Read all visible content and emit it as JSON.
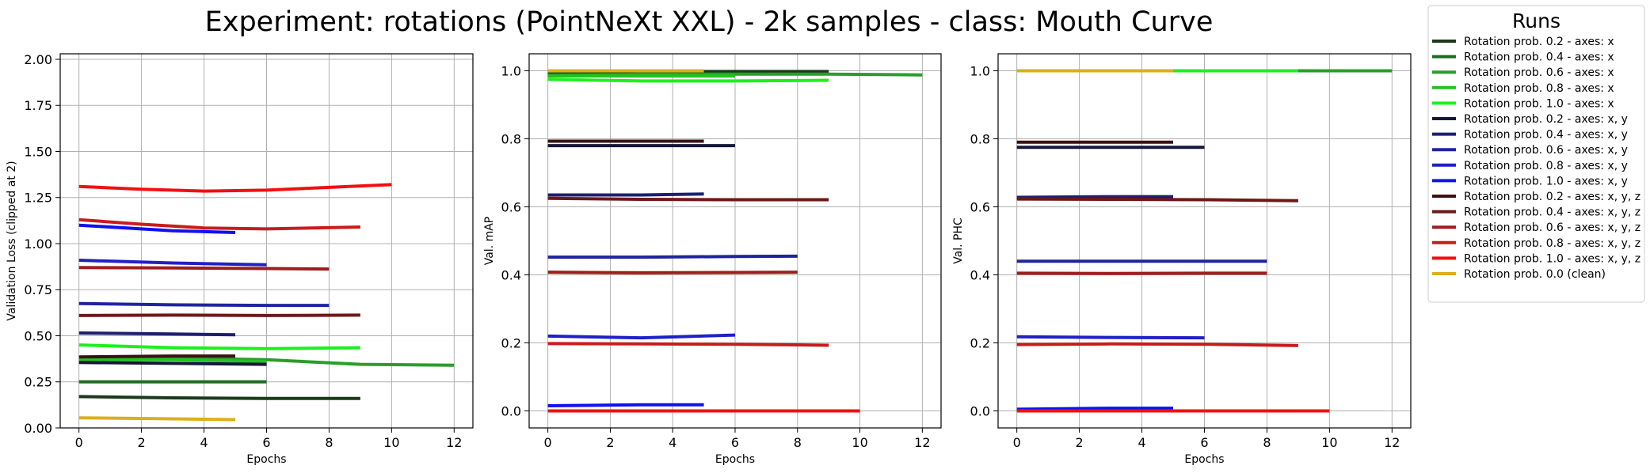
{
  "figure": {
    "title": "Experiment: rotations (PointNeXt XXL) - 2k samples - class: Mouth Curve"
  },
  "legend": {
    "title": "Runs",
    "placement": "outside-right"
  },
  "chart_data": [
    {
      "type": "line",
      "xlabel": "Epochs",
      "ylabel": "Validation Loss (clipped at 2)",
      "xlim": [
        -0.6,
        12.6
      ],
      "ylim": [
        0,
        2.03
      ],
      "xticks": [
        "0",
        "2",
        "4",
        "6",
        "8",
        "10",
        "12"
      ],
      "yticks": [
        "0.00",
        "0.25",
        "0.50",
        "0.75",
        "1.00",
        "1.25",
        "1.50",
        "1.75",
        "2.00"
      ],
      "grid": true,
      "series": [
        {
          "name": "Rotation prob. 0.2 - axes: x",
          "color": "#1a3a1a",
          "x": [
            0,
            3,
            6,
            9
          ],
          "y": [
            0.17,
            0.163,
            0.16,
            0.16
          ]
        },
        {
          "name": "Rotation prob. 0.4 - axes: x",
          "color": "#1d6b24",
          "x": [
            0,
            3,
            6
          ],
          "y": [
            0.25,
            0.25,
            0.25
          ]
        },
        {
          "name": "Rotation prob. 0.6 - axes: x",
          "color": "#2a9d2a",
          "x": [
            0,
            3,
            6,
            9,
            12
          ],
          "y": [
            0.37,
            0.38,
            0.37,
            0.345,
            0.34
          ]
        },
        {
          "name": "Rotation prob. 0.8 - axes: x",
          "color": "#22c222",
          "x": [
            0,
            3,
            6
          ],
          "y": [
            0.37,
            0.37,
            0.36
          ]
        },
        {
          "name": "Rotation prob. 1.0 - axes: x",
          "color": "#1cf01c",
          "x": [
            0,
            3,
            6,
            9
          ],
          "y": [
            0.45,
            0.435,
            0.43,
            0.435
          ]
        },
        {
          "name": "Rotation prob. 0.2 - axes: x, y",
          "color": "#16163a",
          "x": [
            0,
            3,
            6
          ],
          "y": [
            0.355,
            0.35,
            0.345
          ]
        },
        {
          "name": "Rotation prob. 0.4 - axes: x, y",
          "color": "#1e1e70",
          "x": [
            0,
            3,
            5
          ],
          "y": [
            0.515,
            0.51,
            0.505
          ]
        },
        {
          "name": "Rotation prob. 0.6 - axes: x, y",
          "color": "#1f23a0",
          "x": [
            0,
            3,
            6,
            8
          ],
          "y": [
            0.675,
            0.668,
            0.665,
            0.665
          ]
        },
        {
          "name": "Rotation prob. 0.8 - axes: x, y",
          "color": "#2020c8",
          "x": [
            0,
            3,
            6
          ],
          "y": [
            0.91,
            0.895,
            0.885
          ]
        },
        {
          "name": "Rotation prob. 1.0 - axes: x, y",
          "color": "#1010f0",
          "x": [
            0,
            3,
            5
          ],
          "y": [
            1.1,
            1.07,
            1.06
          ]
        },
        {
          "name": "Rotation prob. 0.2 - axes: x, y, z",
          "color": "#3a1212",
          "x": [
            0,
            3,
            5
          ],
          "y": [
            0.385,
            0.39,
            0.39
          ]
        },
        {
          "name": "Rotation prob. 0.4 - axes: x, y, z",
          "color": "#6e1818",
          "x": [
            0,
            3,
            6,
            9
          ],
          "y": [
            0.61,
            0.612,
            0.61,
            0.612
          ]
        },
        {
          "name": "Rotation prob. 0.6 - axes: x, y, z",
          "color": "#a01c1c",
          "x": [
            0,
            3,
            6,
            8
          ],
          "y": [
            0.87,
            0.868,
            0.865,
            0.862
          ]
        },
        {
          "name": "Rotation prob. 0.8 - axes: x, y, z",
          "color": "#c81c1c",
          "x": [
            0,
            2,
            4,
            6,
            9
          ],
          "y": [
            1.13,
            1.105,
            1.085,
            1.08,
            1.09
          ]
        },
        {
          "name": "Rotation prob. 1.0 - axes: x, y, z",
          "color": "#f01010",
          "x": [
            0,
            2,
            4,
            6,
            8,
            10
          ],
          "y": [
            1.31,
            1.295,
            1.285,
            1.29,
            1.305,
            1.32
          ]
        },
        {
          "name": "Rotation prob. 0.0 (clean)",
          "color": "#dbaf1a",
          "x": [
            0,
            2.5,
            5
          ],
          "y": [
            0.055,
            0.05,
            0.045
          ]
        }
      ]
    },
    {
      "type": "line",
      "xlabel": "Epochs",
      "ylabel": "Val. mAP",
      "xlim": [
        -0.6,
        12.6
      ],
      "ylim": [
        -0.05,
        1.05
      ],
      "xticks": [
        "0",
        "2",
        "4",
        "6",
        "8",
        "10",
        "12"
      ],
      "yticks": [
        "0.0",
        "0.2",
        "0.4",
        "0.6",
        "0.8",
        "1.0"
      ],
      "grid": true,
      "series": [
        {
          "name": "Rotation prob. 0.2 - axes: x",
          "color": "#1a3a1a",
          "x": [
            0,
            3,
            6,
            9
          ],
          "y": [
            0.997,
            0.998,
            0.998,
            0.998
          ]
        },
        {
          "name": "Rotation prob. 0.4 - axes: x",
          "color": "#1d6b24",
          "x": [
            0,
            3,
            6
          ],
          "y": [
            0.99,
            0.99,
            0.99
          ]
        },
        {
          "name": "Rotation prob. 0.6 - axes: x",
          "color": "#2a9d2a",
          "x": [
            0,
            3,
            6,
            9,
            12
          ],
          "y": [
            0.985,
            0.99,
            0.99,
            0.99,
            0.988
          ]
        },
        {
          "name": "Rotation prob. 0.8 - axes: x",
          "color": "#22c222",
          "x": [
            0,
            3,
            6
          ],
          "y": [
            0.985,
            0.985,
            0.985
          ]
        },
        {
          "name": "Rotation prob. 1.0 - axes: x",
          "color": "#1cf01c",
          "x": [
            0,
            3,
            6,
            9
          ],
          "y": [
            0.975,
            0.97,
            0.97,
            0.972
          ]
        },
        {
          "name": "Rotation prob. 0.2 - axes: x, y",
          "color": "#16163a",
          "x": [
            0,
            3,
            6
          ],
          "y": [
            0.78,
            0.78,
            0.78
          ]
        },
        {
          "name": "Rotation prob. 0.4 - axes: x, y",
          "color": "#1e1e70",
          "x": [
            0,
            3,
            5
          ],
          "y": [
            0.635,
            0.635,
            0.638
          ]
        },
        {
          "name": "Rotation prob. 0.6 - axes: x, y",
          "color": "#1f23a0",
          "x": [
            0,
            3,
            6,
            8
          ],
          "y": [
            0.452,
            0.452,
            0.454,
            0.455
          ]
        },
        {
          "name": "Rotation prob. 0.8 - axes: x, y",
          "color": "#2020c8",
          "x": [
            0,
            3,
            6
          ],
          "y": [
            0.22,
            0.215,
            0.223
          ]
        },
        {
          "name": "Rotation prob. 1.0 - axes: x, y",
          "color": "#1010f0",
          "x": [
            0,
            3,
            5
          ],
          "y": [
            0.015,
            0.018,
            0.018
          ]
        },
        {
          "name": "Rotation prob. 0.2 - axes: x, y, z",
          "color": "#3a1212",
          "x": [
            0,
            3,
            5
          ],
          "y": [
            0.793,
            0.793,
            0.793
          ]
        },
        {
          "name": "Rotation prob. 0.4 - axes: x, y, z",
          "color": "#6e1818",
          "x": [
            0,
            3,
            6,
            9
          ],
          "y": [
            0.625,
            0.622,
            0.621,
            0.621
          ]
        },
        {
          "name": "Rotation prob. 0.6 - axes: x, y, z",
          "color": "#a01c1c",
          "x": [
            0,
            3,
            6,
            8
          ],
          "y": [
            0.408,
            0.406,
            0.407,
            0.408
          ]
        },
        {
          "name": "Rotation prob. 0.8 - axes: x, y, z",
          "color": "#c81c1c",
          "x": [
            0,
            3,
            6,
            9
          ],
          "y": [
            0.198,
            0.197,
            0.196,
            0.193
          ]
        },
        {
          "name": "Rotation prob. 1.0 - axes: x, y, z",
          "color": "#f01010",
          "x": [
            0,
            5,
            10
          ],
          "y": [
            0.0,
            0.0,
            0.0
          ]
        },
        {
          "name": "Rotation prob. 0.0 (clean)",
          "color": "#dbaf1a",
          "x": [
            0,
            2.5,
            5
          ],
          "y": [
            1.0,
            1.0,
            1.0
          ]
        }
      ]
    },
    {
      "type": "line",
      "xlabel": "Epochs",
      "ylabel": "Val. PHC",
      "xlim": [
        -0.6,
        12.6
      ],
      "ylim": [
        -0.05,
        1.05
      ],
      "xticks": [
        "0",
        "2",
        "4",
        "6",
        "8",
        "10",
        "12"
      ],
      "yticks": [
        "0.0",
        "0.2",
        "0.4",
        "0.6",
        "0.8",
        "1.0"
      ],
      "grid": true,
      "series": [
        {
          "name": "Rotation prob. 0.2 - axes: x",
          "color": "#1a3a1a",
          "x": [
            0,
            3,
            6,
            9
          ],
          "y": [
            1.0,
            1.0,
            1.0,
            1.0
          ]
        },
        {
          "name": "Rotation prob. 0.4 - axes: x",
          "color": "#1d6b24",
          "x": [
            0,
            3,
            6
          ],
          "y": [
            1.0,
            1.0,
            1.0
          ]
        },
        {
          "name": "Rotation prob. 0.6 - axes: x",
          "color": "#2a9d2a",
          "x": [
            0,
            3,
            6,
            9,
            12
          ],
          "y": [
            1.0,
            1.0,
            1.0,
            1.0,
            1.0
          ]
        },
        {
          "name": "Rotation prob. 0.8 - axes: x",
          "color": "#22c222",
          "x": [
            0,
            3,
            6
          ],
          "y": [
            1.0,
            1.0,
            1.0
          ]
        },
        {
          "name": "Rotation prob. 1.0 - axes: x",
          "color": "#1cf01c",
          "x": [
            0,
            3,
            6,
            9
          ],
          "y": [
            1.0,
            1.0,
            1.0,
            1.0
          ]
        },
        {
          "name": "Rotation prob. 0.2 - axes: x, y",
          "color": "#16163a",
          "x": [
            0,
            3,
            6
          ],
          "y": [
            0.775,
            0.775,
            0.775
          ]
        },
        {
          "name": "Rotation prob. 0.4 - axes: x, y",
          "color": "#1e1e70",
          "x": [
            0,
            3,
            5
          ],
          "y": [
            0.628,
            0.63,
            0.63
          ]
        },
        {
          "name": "Rotation prob. 0.6 - axes: x, y",
          "color": "#1f23a0",
          "x": [
            0,
            3,
            6,
            8
          ],
          "y": [
            0.44,
            0.44,
            0.44,
            0.44
          ]
        },
        {
          "name": "Rotation prob. 0.8 - axes: x, y",
          "color": "#2020c8",
          "x": [
            0,
            3,
            6
          ],
          "y": [
            0.218,
            0.216,
            0.215
          ]
        },
        {
          "name": "Rotation prob. 1.0 - axes: x, y",
          "color": "#1010f0",
          "x": [
            0,
            3,
            5
          ],
          "y": [
            0.005,
            0.008,
            0.008
          ]
        },
        {
          "name": "Rotation prob. 0.2 - axes: x, y, z",
          "color": "#3a1212",
          "x": [
            0,
            3,
            5
          ],
          "y": [
            0.79,
            0.79,
            0.79
          ]
        },
        {
          "name": "Rotation prob. 0.4 - axes: x, y, z",
          "color": "#6e1818",
          "x": [
            0,
            3,
            6,
            9
          ],
          "y": [
            0.623,
            0.622,
            0.621,
            0.618
          ]
        },
        {
          "name": "Rotation prob. 0.6 - axes: x, y, z",
          "color": "#a01c1c",
          "x": [
            0,
            3,
            6,
            8
          ],
          "y": [
            0.405,
            0.404,
            0.405,
            0.405
          ]
        },
        {
          "name": "Rotation prob. 0.8 - axes: x, y, z",
          "color": "#c81c1c",
          "x": [
            0,
            3,
            6,
            9
          ],
          "y": [
            0.195,
            0.197,
            0.196,
            0.192
          ]
        },
        {
          "name": "Rotation prob. 1.0 - axes: x, y, z",
          "color": "#f01010",
          "x": [
            0,
            5,
            10
          ],
          "y": [
            0.0,
            0.0,
            0.0
          ]
        },
        {
          "name": "Rotation prob. 0.0 (clean)",
          "color": "#dbaf1a",
          "x": [
            0,
            2.5,
            5
          ],
          "y": [
            1.0,
            1.0,
            1.0
          ]
        }
      ]
    }
  ]
}
